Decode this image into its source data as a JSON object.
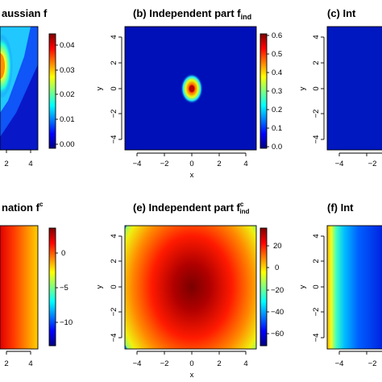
{
  "figure": {
    "panels": [
      {
        "id": "a",
        "title": "aussian f",
        "sub": "",
        "sup": ""
      },
      {
        "id": "b",
        "title": "(b) Independent part f",
        "sub": "ind",
        "sup": ""
      },
      {
        "id": "c",
        "title": "(c) Int",
        "sub": "",
        "sup": ""
      },
      {
        "id": "d",
        "title": "nation f",
        "sub": "",
        "sup": "c"
      },
      {
        "id": "e",
        "title": "(e) Independent part f",
        "sub": "ind",
        "sup": "c"
      },
      {
        "id": "f",
        "title": "(f) Int",
        "sub": "",
        "sup": ""
      }
    ]
  },
  "colors": {
    "colormap": [
      "#00007F",
      "#0000FF",
      "#007FFF",
      "#00FFFF",
      "#7FFF7F",
      "#FFFF00",
      "#FF7F00",
      "#FF0000",
      "#7F0000"
    ]
  },
  "chart_data": [
    {
      "type": "heatmap",
      "panel": "a",
      "title": "aussian f",
      "xlabel": "",
      "ylabel": "",
      "x_ticks": [
        2,
        4
      ],
      "x_tick_labels": [
        "2",
        "4"
      ],
      "xlim": [
        -5,
        5
      ],
      "colorbar": {
        "ticks": [
          0.0,
          0.01,
          0.02,
          0.03,
          0.04
        ],
        "tick_labels": [
          "0.00",
          "0.01",
          "0.02",
          "0.03",
          "0.04"
        ],
        "range": [
          0,
          0.045
        ]
      }
    },
    {
      "type": "heatmap",
      "panel": "b",
      "title": "(b) Independent part f_ind",
      "xlabel": "x",
      "ylabel": "y",
      "x_ticks": [
        -4,
        -2,
        0,
        2,
        4
      ],
      "x_tick_labels": [
        "−4",
        "−2",
        "0",
        "2",
        "4"
      ],
      "y_ticks": [
        -4,
        -2,
        0,
        2,
        4
      ],
      "y_tick_labels": [
        "−4",
        "−2",
        "0",
        "2",
        "4"
      ],
      "xlim": [
        -5,
        5
      ],
      "ylim": [
        -5,
        5
      ],
      "colorbar": {
        "ticks": [
          0.0,
          0.1,
          0.2,
          0.3,
          0.4,
          0.5,
          0.6
        ],
        "tick_labels": [
          "0.0",
          "0.1",
          "0.2",
          "0.3",
          "0.4",
          "0.5",
          "0.6"
        ],
        "range": [
          0,
          0.62
        ]
      }
    },
    {
      "type": "heatmap",
      "panel": "c",
      "title": "(c) Int",
      "xlabel": "",
      "ylabel": "y",
      "x_ticks": [
        -4,
        -2
      ],
      "x_tick_labels": [
        "−4",
        "−2"
      ],
      "y_ticks": [
        -4,
        -2,
        0,
        2,
        4
      ],
      "y_tick_labels": [
        "−4",
        "−2",
        "0",
        "2",
        "4"
      ],
      "xlim": [
        -5,
        5
      ],
      "ylim": [
        -5,
        5
      ]
    },
    {
      "type": "heatmap",
      "panel": "d",
      "title": "nation f^c",
      "xlabel": "",
      "ylabel": "",
      "x_ticks": [
        2,
        4
      ],
      "x_tick_labels": [
        "2",
        "4"
      ],
      "xlim": [
        -5,
        5
      ],
      "colorbar": {
        "ticks": [
          0,
          -5,
          -10
        ],
        "tick_labels": [
          "0",
          "−5",
          "−10"
        ],
        "range": [
          -13,
          4
        ]
      }
    },
    {
      "type": "heatmap",
      "panel": "e",
      "title": "(e) Independent part f^c_ind",
      "xlabel": "x",
      "ylabel": "y",
      "x_ticks": [
        -4,
        -2,
        0,
        2,
        4
      ],
      "x_tick_labels": [
        "−4",
        "−2",
        "0",
        "2",
        "4"
      ],
      "y_ticks": [
        -4,
        -2,
        0,
        2,
        4
      ],
      "y_tick_labels": [
        "−4",
        "−2",
        "0",
        "2",
        "4"
      ],
      "xlim": [
        -5,
        5
      ],
      "ylim": [
        -5,
        5
      ],
      "colorbar": {
        "ticks": [
          20,
          0,
          -20,
          -40,
          -60
        ],
        "tick_labels": [
          "20",
          "0",
          "−20",
          "−40",
          "−60"
        ],
        "range": [
          -70,
          35
        ]
      }
    },
    {
      "type": "heatmap",
      "panel": "f",
      "title": "(f) Int",
      "xlabel": "",
      "ylabel": "y",
      "x_ticks": [
        -4,
        -2
      ],
      "x_tick_labels": [
        "−4",
        "−2"
      ],
      "y_ticks": [
        -4,
        -2,
        0,
        2,
        4
      ],
      "y_tick_labels": [
        "−4",
        "−2",
        "0",
        "2",
        "4"
      ],
      "xlim": [
        -5,
        5
      ],
      "ylim": [
        -5,
        5
      ]
    }
  ]
}
